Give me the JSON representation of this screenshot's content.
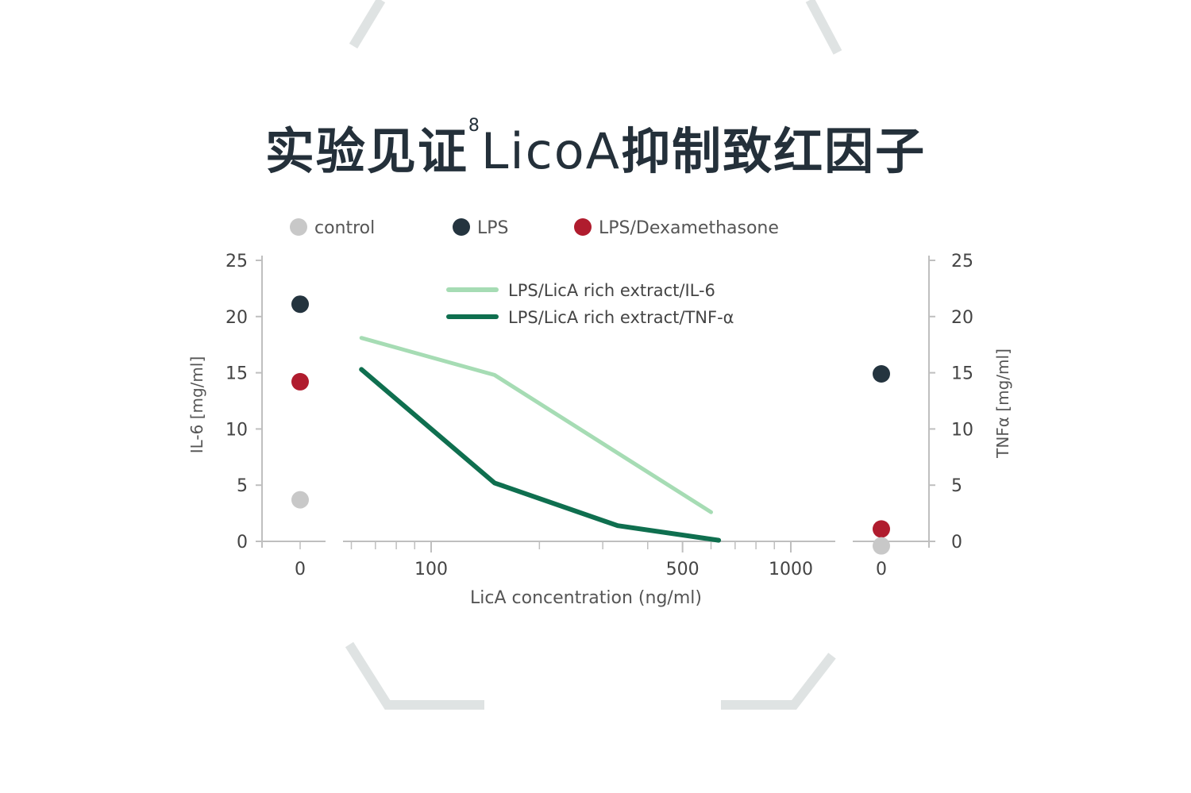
{
  "title": {
    "prefix": "实验见证",
    "superscript": "8",
    "latin": "LicoA",
    "suffix": "抑制致红因子"
  },
  "chart_data": {
    "type": "line",
    "xlabel": "LicA concentration (ng/ml)",
    "ylabel_left": "IL-6 [mg/ml]",
    "ylabel_right": "TNFα [mg/ml]",
    "x_scale": "log",
    "x_ticks": [
      {
        "label": "100",
        "value": 100
      },
      {
        "label": "500",
        "value": 500
      },
      {
        "label": "1000",
        "value": 1000
      }
    ],
    "x_zero_label": "0",
    "ylim": [
      0,
      25
    ],
    "y_ticks": [
      {
        "label": "0",
        "value": 0
      },
      {
        "label": "5",
        "value": 5
      },
      {
        "label": "10",
        "value": 10
      },
      {
        "label": "15",
        "value": 15
      },
      {
        "label": "20",
        "value": 20
      },
      {
        "label": "25",
        "value": 25
      }
    ],
    "legend_markers": [
      {
        "label": "control",
        "color": "#c8c8c8"
      },
      {
        "label": "LPS",
        "color": "#24343f"
      },
      {
        "label": "LPS/Dexamethasone",
        "color": "#b01c2e"
      }
    ],
    "series": [
      {
        "name": "LPS/LicA rich extract/IL-6",
        "color": "#a6dcb4",
        "x": [
          64,
          150,
          600
        ],
        "y": [
          18.1,
          14.8,
          2.6
        ]
      },
      {
        "name": "LPS/LicA rich extract/TNF-α",
        "color": "#0f6f4f",
        "x": [
          64,
          150,
          330,
          630
        ],
        "y": [
          15.3,
          5.2,
          1.4,
          0.1
        ]
      }
    ],
    "baseline_left": [
      {
        "group": "LPS",
        "y": 21.1,
        "color": "#24343f"
      },
      {
        "group": "LPS/Dexamethasone",
        "y": 14.2,
        "color": "#b01c2e"
      },
      {
        "group": "control",
        "y": 3.7,
        "color": "#c8c8c8"
      }
    ],
    "baseline_right": [
      {
        "group": "LPS",
        "y": 14.9,
        "color": "#24343f"
      },
      {
        "group": "LPS/Dexamethasone",
        "y": 1.1,
        "color": "#b01c2e"
      },
      {
        "group": "control",
        "y": -0.4,
        "color": "#c8c8c8"
      }
    ]
  }
}
